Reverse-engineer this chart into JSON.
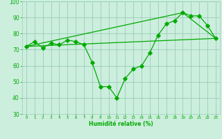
{
  "xlabel": "Humidité relative (%)",
  "bg_color": "#cceedd",
  "grid_color": "#99ccbb",
  "line_color": "#00aa00",
  "xlim": [
    -0.5,
    23.5
  ],
  "ylim": [
    30,
    100
  ],
  "yticks": [
    30,
    40,
    50,
    60,
    70,
    80,
    90,
    100
  ],
  "xticks": [
    0,
    1,
    2,
    3,
    4,
    5,
    6,
    7,
    8,
    9,
    10,
    11,
    12,
    13,
    14,
    15,
    16,
    17,
    18,
    19,
    20,
    21,
    22,
    23
  ],
  "series1_x": [
    0,
    1,
    2,
    3,
    4,
    5,
    6,
    7,
    8,
    9,
    10,
    11,
    12,
    13,
    14,
    15,
    16,
    17,
    18,
    19,
    20,
    21,
    22,
    23
  ],
  "series1_y": [
    72,
    75,
    71,
    74,
    73,
    76,
    75,
    73,
    62,
    47,
    47,
    40,
    52,
    58,
    60,
    68,
    79,
    86,
    88,
    93,
    91,
    91,
    85,
    77
  ],
  "series2_x": [
    0,
    23
  ],
  "series2_y": [
    72,
    77
  ],
  "series3_x": [
    0,
    19,
    23
  ],
  "series3_y": [
    72,
    93,
    77
  ]
}
